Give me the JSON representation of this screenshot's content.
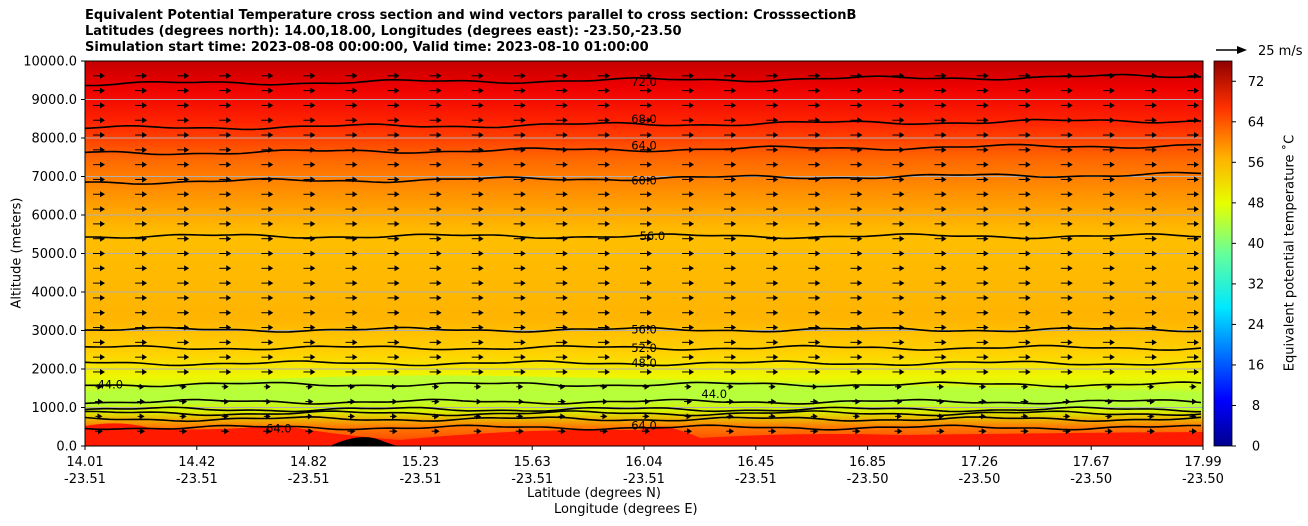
{
  "chart_data": {
    "type": "heatmap",
    "title_lines": [
      "Equivalent Potential Temperature cross section and wind vectors parallel to cross section: CrosssectionB",
      "Latitudes (degrees north): 14.00,18.00, Longitudes (degrees east): -23.50,-23.50",
      "Simulation start time: 2023-08-08 00:00:00, Valid time: 2023-08-10 01:00:00"
    ],
    "ylabel": "Altitude (meters)",
    "xlabel": "Latitude (degrees N)",
    "xlabel2": "Longitude (degrees E)",
    "ylim": [
      0,
      10000
    ],
    "y_ticks": [
      0,
      1000,
      2000,
      3000,
      4000,
      5000,
      6000,
      7000,
      8000,
      9000,
      10000
    ],
    "y_tick_labels": [
      "0.0",
      "1000.0",
      "2000.0",
      "3000.0",
      "4000.0",
      "5000.0",
      "6000.0",
      "7000.0",
      "8000.0",
      "9000.0",
      "10000.0"
    ],
    "x_ticks_lat": [
      "14.01",
      "14.42",
      "14.82",
      "15.23",
      "15.63",
      "16.04",
      "16.45",
      "16.85",
      "17.26",
      "17.67",
      "17.99"
    ],
    "x_ticks_lon": [
      "-23.51",
      "-23.51",
      "-23.51",
      "-23.51",
      "-23.51",
      "-23.51",
      "-23.51",
      "-23.50",
      "-23.50",
      "-23.50",
      "-23.50"
    ],
    "colorbar": {
      "label": "Equivalent potential temperature ˚C",
      "range": [
        0,
        76
      ],
      "tick_values": [
        0,
        8,
        16,
        24,
        32,
        40,
        48,
        56,
        64,
        72
      ],
      "tick_labels": [
        "0",
        "8",
        "16",
        "24",
        "32",
        "40",
        "48",
        "56",
        "64",
        "72"
      ]
    },
    "quiver_key": "25 m/s",
    "contours": [
      {
        "level": 72,
        "label": "72.0",
        "altitude": 9400
      },
      {
        "level": 68,
        "label": "68.0",
        "altitude": 8250
      },
      {
        "level": 64,
        "label": "64.0",
        "altitude": 7600
      },
      {
        "level": 60,
        "label": "60.0",
        "altitude": 6850
      },
      {
        "level": 56,
        "label": "56.0",
        "altitude": 5450
      },
      {
        "level": 56,
        "label": "56.0",
        "altitude": 3020
      },
      {
        "level": 52,
        "label": "52.0",
        "altitude": 2550
      },
      {
        "level": 48,
        "label": "48.0",
        "altitude": 2150
      },
      {
        "level": 44,
        "label": "44.0",
        "altitude": 1600
      },
      {
        "level": 48,
        "label": "48.0",
        "altitude": 1150
      },
      {
        "level": 52,
        "label": "52.0",
        "altitude": 950
      },
      {
        "level": 56,
        "label": "56.0",
        "altitude": 850
      },
      {
        "level": 60,
        "label": "60.0",
        "altitude": 700
      },
      {
        "level": 64,
        "label": "64.0",
        "altitude": 480
      }
    ],
    "contour_labels": [
      {
        "text": "72.0",
        "lat": 16.0,
        "alt": 9450
      },
      {
        "text": "68.0",
        "lat": 16.0,
        "alt": 8500
      },
      {
        "text": "64.0",
        "lat": 16.0,
        "alt": 7800
      },
      {
        "text": "60.0",
        "lat": 16.0,
        "alt": 6900
      },
      {
        "text": "56.0",
        "lat": 16.03,
        "alt": 5450
      },
      {
        "text": "56.0",
        "lat": 16.0,
        "alt": 3030
      },
      {
        "text": "52.0",
        "lat": 16.0,
        "alt": 2550
      },
      {
        "text": "48.0",
        "lat": 16.0,
        "alt": 2150
      },
      {
        "text": "44.0",
        "lat": 14.1,
        "alt": 1600
      },
      {
        "text": "64.0",
        "lat": 14.7,
        "alt": 450
      },
      {
        "text": "64.0",
        "lat": 16.0,
        "alt": 530
      },
      {
        "text": "44.0",
        "lat": 16.25,
        "alt": 1350
      }
    ]
  }
}
